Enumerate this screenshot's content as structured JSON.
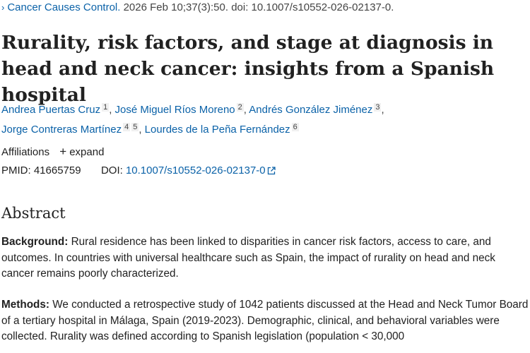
{
  "citation": {
    "chevron": "›",
    "journal": "Cancer Causes Control.",
    "details": "2026 Feb 10;37(3):50. doi: 10.1007/s10552-026-02137-0."
  },
  "title": "Rurality, risk factors, and stage at diagnosis in head and neck cancer: insights from a Spanish hospital",
  "authors": [
    {
      "name": "Andrea Puertas Cruz",
      "sup": "1"
    },
    {
      "name": "José Miguel Ríos Moreno",
      "sup": "2"
    },
    {
      "name": "Andrés González Jiménez",
      "sup": "3"
    },
    {
      "name": "Jorge Contreras Martínez",
      "sup": "4",
      "sup2": "5"
    },
    {
      "name": "Lourdes de la Peña Fernández",
      "sup": "6"
    }
  ],
  "affiliations": {
    "label": "Affiliations",
    "expand_label": "expand",
    "plus": "+"
  },
  "identifiers": {
    "pmid_label": "PMID:",
    "pmid": "41665759",
    "doi_label": "DOI:",
    "doi": "10.1007/s10552-026-02137-0"
  },
  "abstract": {
    "heading": "Abstract",
    "background_label": "Background:",
    "background_text": " Rural residence has been linked to disparities in cancer risk factors, access to care, and outcomes. In countries with universal healthcare such as Spain, the impact of rurality on head and neck cancer remains poorly characterized.",
    "methods_label": "Methods:",
    "methods_text": " We conducted a retrospective study of 1042 patients discussed at the Head and Neck Tumor Board of a tertiary hospital in Málaga, Spain (2019-2023). Demographic, clinical, and behavioral variables were collected. Rurality was defined according to Spanish legislation (population < 30,000"
  },
  "colors": {
    "link": "#0b62a8",
    "text": "#212121"
  }
}
